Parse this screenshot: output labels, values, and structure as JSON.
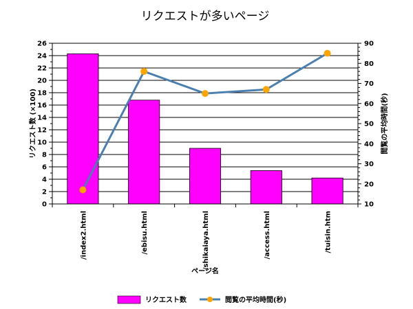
{
  "colors": {
    "bar": "#ff00ff",
    "line": "#4a7fb0",
    "marker": "#ffa500",
    "grid": "#000000"
  },
  "chart_data": {
    "type": "bar",
    "title": "リクエストが多いページ",
    "xlabel": "ページ名",
    "ylabel": "リクエスト数 (×100)",
    "y2label": "閲覧の平均時間(秒)",
    "categories": [
      "/index2.html",
      "/ebisu.html",
      "/shikaiaya.html",
      "/access.html",
      "/tuisin.htm"
    ],
    "ylim": [
      0,
      26
    ],
    "y2lim": [
      10,
      90
    ],
    "yticks": [
      "0",
      "2",
      "4",
      "6",
      "8",
      "10",
      "12",
      "14",
      "16",
      "18",
      "20",
      "22",
      "24",
      "26"
    ],
    "y2ticks": [
      "10",
      "20",
      "30",
      "40",
      "50",
      "60",
      "70",
      "80",
      "90"
    ],
    "grid": true,
    "legend_position": "bottom",
    "series": [
      {
        "name": "リクエスト数",
        "type": "bar",
        "axis": "left",
        "values": [
          24.3,
          16.8,
          9.0,
          5.4,
          4.2
        ]
      },
      {
        "name": "閲覧の平均時間(秒)",
        "type": "line",
        "axis": "right",
        "values": [
          17,
          76,
          65,
          67,
          85
        ]
      }
    ]
  }
}
